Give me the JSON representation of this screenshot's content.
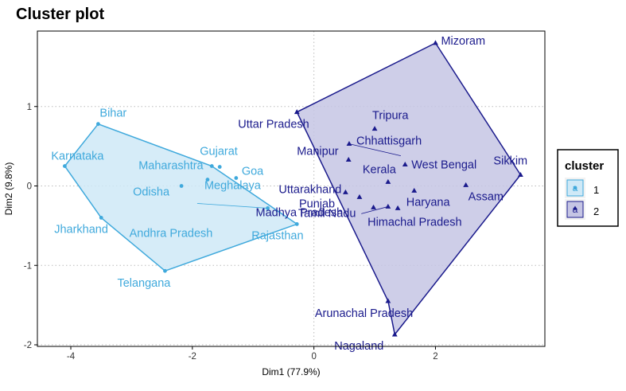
{
  "chart_data": {
    "type": "scatter",
    "title": "Cluster plot",
    "xlabel": "Dim1 (77.9%)",
    "ylabel": "Dim2 (9.8%)",
    "xlim": [
      -4.55,
      3.8
    ],
    "ylim": [
      -2.02,
      1.95
    ],
    "x_ticks": [
      -4,
      -2,
      0,
      2
    ],
    "y_ticks": [
      -2,
      -1,
      0,
      1
    ],
    "x_tick_labels": [
      "-4",
      "-2",
      "0",
      "2"
    ],
    "y_tick_labels": [
      "-2",
      "-1",
      "0",
      "1"
    ],
    "grid": "horizontal dotted",
    "legend": {
      "title": "cluster",
      "placement": "right",
      "entries": [
        {
          "label": "1",
          "symbol": "a"
        },
        {
          "label": "2",
          "symbol": "a"
        }
      ]
    },
    "colors": {
      "cluster1": "#3fa9dc",
      "cluster1_fill": "#cfe9f7",
      "cluster2": "#1a1a8c",
      "cluster2_fill": "#c5c5e4",
      "grid": "#bbbbbb"
    },
    "series": [
      {
        "name": "1",
        "marker": "circle",
        "hull": [
          "Bihar",
          "Karnataka",
          "Jharkhand",
          "Telangana",
          "Rajasthan",
          "Gujarat"
        ],
        "points": [
          {
            "label": "Bihar",
            "x": -3.55,
            "y": 0.78
          },
          {
            "label": "Karnataka",
            "x": -4.1,
            "y": 0.25
          },
          {
            "label": "Jharkhand",
            "x": -3.5,
            "y": -0.4
          },
          {
            "label": "Telangana",
            "x": -2.45,
            "y": -1.07
          },
          {
            "label": "Rajasthan",
            "x": -0.28,
            "y": -0.48
          },
          {
            "label": "Gujarat",
            "x": -1.68,
            "y": 0.25
          },
          {
            "label": "Goa",
            "x": -1.28,
            "y": 0.1
          },
          {
            "label": "Maharashtra",
            "x": -1.55,
            "y": 0.24
          },
          {
            "label": "Odisha",
            "x": -2.18,
            "y": 0.0
          },
          {
            "label": "Meghalaya",
            "x": -1.75,
            "y": 0.08
          },
          {
            "label": "Andhra Pradesh",
            "x": -0.76,
            "y": -0.28
          }
        ]
      },
      {
        "name": "2",
        "marker": "triangle",
        "hull": [
          "Mizoram",
          "Sikkim",
          "Nagaland",
          "Arunachal Pradesh",
          "Uttar Pradesh"
        ],
        "points": [
          {
            "label": "Mizoram",
            "x": 2.0,
            "y": 1.8
          },
          {
            "label": "Uttar Pradesh",
            "x": -0.28,
            "y": 0.93
          },
          {
            "label": "Tripura",
            "x": 1.0,
            "y": 0.72
          },
          {
            "label": "Chhattisgarh",
            "x": 0.58,
            "y": 0.53
          },
          {
            "label": "Manipur",
            "x": 0.57,
            "y": 0.33
          },
          {
            "label": "West Bengal",
            "x": 1.5,
            "y": 0.27
          },
          {
            "label": "Kerala",
            "x": 1.22,
            "y": 0.05
          },
          {
            "label": "Uttarakhand",
            "x": 0.52,
            "y": -0.08
          },
          {
            "label": "Sikkim",
            "x": 3.4,
            "y": 0.14
          },
          {
            "label": "Assam",
            "x": 2.5,
            "y": 0.01
          },
          {
            "label": "Haryana",
            "x": 1.65,
            "y": -0.06
          },
          {
            "label": "Punjab",
            "x": 0.75,
            "y": -0.14
          },
          {
            "label": "Madhya Pradesh",
            "x": 0.98,
            "y": -0.27
          },
          {
            "label": "Tamil Nadu",
            "x": 1.22,
            "y": -0.26
          },
          {
            "label": "Himachal Pradesh",
            "x": 1.38,
            "y": -0.28
          },
          {
            "label": "Arunachal Pradesh",
            "x": 1.22,
            "y": -1.45
          },
          {
            "label": "Nagaland",
            "x": 1.33,
            "y": -1.87
          }
        ]
      }
    ]
  }
}
